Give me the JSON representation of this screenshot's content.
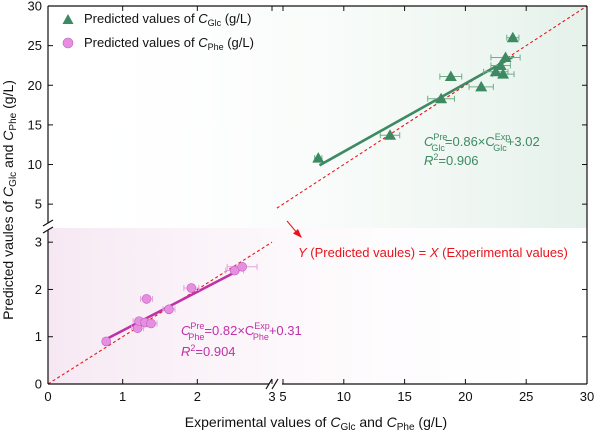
{
  "chart_data": {
    "type": "scatter",
    "axes": {
      "xlabel": {
        "prefix": "Experimental values of ",
        "v1": "C",
        "s1": "Glc",
        "mid": " and ",
        "v2": "C",
        "s2": "Phe",
        "suffix": " (g/L)"
      },
      "ylabel": {
        "prefix": "Predicted vaules of ",
        "v1": "C",
        "s1": "Glc",
        "mid": " and ",
        "v2": "C",
        "s2": "Phe",
        "suffix": " (g/L)"
      },
      "x_broken": true,
      "y_broken": true,
      "x_lower_range": [
        0,
        3
      ],
      "x_upper_range": [
        5,
        30
      ],
      "y_lower_range": [
        0,
        3.3
      ],
      "y_upper_range": [
        3,
        30
      ],
      "x_lower_ticks": [
        0,
        1,
        2,
        3
      ],
      "x_upper_ticks": [
        5,
        10,
        15,
        20,
        25,
        30
      ],
      "y_lower_ticks": [
        0,
        1,
        2,
        3
      ],
      "y_upper_ticks": [
        5,
        10,
        15,
        20,
        25,
        30
      ]
    },
    "colors": {
      "glc": "#3d8a62",
      "phe": "#e68fe0",
      "phe_edge": "#c060c0",
      "phe_fit": "#c030a8",
      "diagonal": "#e8141c",
      "errorbar_glc": "#6fae88",
      "errorbar_phe": "#e8a0e0",
      "upper_bg": "#e5f1ea",
      "lower_bg": "#f6e8f3"
    },
    "legend": {
      "position": "top-left",
      "items": [
        {
          "marker": "triangle",
          "prefix": "Predicted values of ",
          "var": "C",
          "sub": "Glc",
          "suffix": " (g/L)"
        },
        {
          "marker": "circle",
          "prefix": "Predicted values of ",
          "var": "C",
          "sub": "Phe",
          "suffix": " (g/L)"
        }
      ]
    },
    "series": [
      {
        "name": "Predicted values of CGlc (g/L)",
        "marker": "triangle",
        "points": [
          {
            "x": 7.9,
            "y": 10.8,
            "xerr": 0.3
          },
          {
            "x": 13.8,
            "y": 13.7,
            "xerr": 0.8
          },
          {
            "x": 18.0,
            "y": 18.3,
            "xerr": 1.1
          },
          {
            "x": 18.8,
            "y": 21.1,
            "xerr": 0.9
          },
          {
            "x": 21.3,
            "y": 19.8,
            "xerr": 1.0
          },
          {
            "x": 22.5,
            "y": 21.7,
            "xerr": 1.0
          },
          {
            "x": 22.9,
            "y": 22.5,
            "xerr": 0.8
          },
          {
            "x": 23.1,
            "y": 21.4,
            "xerr": 0.9
          },
          {
            "x": 23.3,
            "y": 23.5,
            "xerr": 1.2
          },
          {
            "x": 23.9,
            "y": 26.0,
            "xerr": 0.5
          }
        ],
        "fit": {
          "slope": 0.86,
          "intercept": 3.02,
          "x_range": [
            8.0,
            24.0
          ]
        }
      },
      {
        "name": "Predicted values of CPhe (g/L)",
        "marker": "circle",
        "points": [
          {
            "x": 0.78,
            "y": 0.9,
            "xerr": 0.05
          },
          {
            "x": 1.2,
            "y": 1.18,
            "xerr": 0.08
          },
          {
            "x": 1.22,
            "y": 1.33,
            "xerr": 0.08
          },
          {
            "x": 1.3,
            "y": 1.3,
            "xerr": 0.08
          },
          {
            "x": 1.32,
            "y": 1.8,
            "xerr": 0.08
          },
          {
            "x": 1.38,
            "y": 1.28,
            "xerr": 0.08
          },
          {
            "x": 1.62,
            "y": 1.58,
            "xerr": 0.08
          },
          {
            "x": 1.92,
            "y": 2.03,
            "xerr": 0.1
          },
          {
            "x": 2.5,
            "y": 2.4,
            "xerr": 0.12
          },
          {
            "x": 2.6,
            "y": 2.48,
            "xerr": 0.2
          }
        ],
        "fit": {
          "slope": 0.82,
          "intercept": 0.31,
          "x_range": [
            0.78,
            2.63
          ]
        }
      }
    ],
    "annotations": {
      "glc_equation": {
        "lead": "C",
        "sup1": "Pre",
        "sub1": "Glc",
        "mid": "=0.86×C",
        "sup2": "Exp",
        "sub2": "Glc",
        "tail": "+3.02"
      },
      "glc_r2": {
        "r": "R",
        "two": "2",
        "val": "=0.906"
      },
      "phe_equation": {
        "lead": "C",
        "sup1": "Pre",
        "sub1": "Phe",
        "mid": "=0.82×C",
        "sup2": "Exp",
        "sub2": "Phe",
        "tail": "+0.31"
      },
      "phe_r2": {
        "r": "R",
        "two": "2",
        "val": "=0.904"
      },
      "diagonal_label": {
        "y": "Y",
        "t1": " (Predicted vaules) = ",
        "x": "X",
        "t2": " (Experimental values)"
      }
    }
  }
}
